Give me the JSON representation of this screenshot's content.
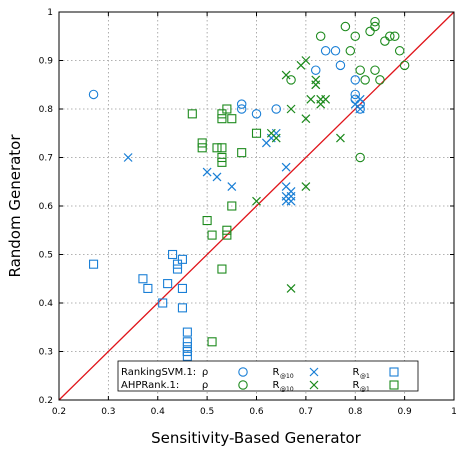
{
  "chart_data": {
    "type": "scatter",
    "xlabel": "Sensitivity-Based Generator",
    "ylabel": "Random Generator",
    "xlim": [
      0.2,
      1.0
    ],
    "ylim": [
      0.2,
      1.0
    ],
    "xticks": [
      "0.2",
      "0.3",
      "0.4",
      "0.5",
      "0.6",
      "0.7",
      "0.8",
      "0.9",
      "1"
    ],
    "yticks": [
      "0.2",
      "0.3",
      "0.4",
      "0.5",
      "0.6",
      "0.7",
      "0.8",
      "0.9",
      "1"
    ],
    "grid": true,
    "diagonal": true,
    "legend_position": "bottom",
    "legend": {
      "rows": [
        {
          "name": "RankingSVM.1:",
          "color": "#1a7fd6",
          "entries": [
            {
              "label": "ρ",
              "sub": "",
              "marker": "circle"
            },
            {
              "label": "R",
              "sub": "@10",
              "marker": "x"
            },
            {
              "label": "R",
              "sub": "@1",
              "marker": "square"
            }
          ]
        },
        {
          "name": "AHPRank.1:",
          "color": "#1d8a1d",
          "entries": [
            {
              "label": "ρ",
              "sub": "",
              "marker": "circle"
            },
            {
              "label": "R",
              "sub": "@10",
              "marker": "x"
            },
            {
              "label": "R",
              "sub": "@1",
              "marker": "square"
            }
          ]
        }
      ]
    },
    "series": [
      {
        "group": "RankingSVM.1",
        "metric": "ρ",
        "marker": "circle",
        "color": "#1a7fd6",
        "points": [
          [
            0.27,
            0.83
          ],
          [
            0.57,
            0.81
          ],
          [
            0.57,
            0.8
          ],
          [
            0.6,
            0.79
          ],
          [
            0.72,
            0.88
          ],
          [
            0.74,
            0.92
          ],
          [
            0.76,
            0.92
          ],
          [
            0.77,
            0.89
          ],
          [
            0.8,
            0.86
          ],
          [
            0.8,
            0.83
          ],
          [
            0.8,
            0.82
          ],
          [
            0.81,
            0.81
          ],
          [
            0.81,
            0.8
          ],
          [
            0.64,
            0.8
          ]
        ]
      },
      {
        "group": "RankingSVM.1",
        "metric": "R@10",
        "marker": "x",
        "color": "#1a7fd6",
        "points": [
          [
            0.34,
            0.7
          ],
          [
            0.5,
            0.67
          ],
          [
            0.52,
            0.66
          ],
          [
            0.55,
            0.64
          ],
          [
            0.62,
            0.73
          ],
          [
            0.63,
            0.74
          ],
          [
            0.64,
            0.75
          ],
          [
            0.66,
            0.68
          ],
          [
            0.66,
            0.64
          ],
          [
            0.67,
            0.63
          ],
          [
            0.66,
            0.62
          ],
          [
            0.67,
            0.61
          ],
          [
            0.66,
            0.61
          ],
          [
            0.67,
            0.62
          ],
          [
            0.81,
            0.8
          ],
          [
            0.8,
            0.81
          ],
          [
            0.81,
            0.82
          ]
        ]
      },
      {
        "group": "RankingSVM.1",
        "metric": "R@1",
        "marker": "square",
        "color": "#1a7fd6",
        "points": [
          [
            0.27,
            0.48
          ],
          [
            0.37,
            0.45
          ],
          [
            0.38,
            0.43
          ],
          [
            0.41,
            0.4
          ],
          [
            0.42,
            0.44
          ],
          [
            0.43,
            0.5
          ],
          [
            0.44,
            0.48
          ],
          [
            0.45,
            0.49
          ],
          [
            0.45,
            0.43
          ],
          [
            0.45,
            0.39
          ],
          [
            0.46,
            0.34
          ],
          [
            0.46,
            0.32
          ],
          [
            0.46,
            0.31
          ],
          [
            0.46,
            0.3
          ],
          [
            0.46,
            0.3
          ],
          [
            0.46,
            0.29
          ],
          [
            0.44,
            0.47
          ]
        ]
      },
      {
        "group": "AHPRank.1",
        "metric": "ρ",
        "marker": "circle",
        "color": "#1d8a1d",
        "points": [
          [
            0.67,
            0.86
          ],
          [
            0.73,
            0.95
          ],
          [
            0.78,
            0.97
          ],
          [
            0.79,
            0.92
          ],
          [
            0.8,
            0.95
          ],
          [
            0.81,
            0.7
          ],
          [
            0.82,
            0.86
          ],
          [
            0.83,
            0.96
          ],
          [
            0.84,
            0.97
          ],
          [
            0.84,
            0.98
          ],
          [
            0.84,
            0.88
          ],
          [
            0.85,
            0.86
          ],
          [
            0.86,
            0.94
          ],
          [
            0.87,
            0.95
          ],
          [
            0.88,
            0.95
          ],
          [
            0.89,
            0.92
          ],
          [
            0.9,
            0.89
          ],
          [
            0.81,
            0.88
          ]
        ]
      },
      {
        "group": "AHPRank.1",
        "metric": "R@10",
        "marker": "x",
        "color": "#1d8a1d",
        "points": [
          [
            0.6,
            0.61
          ],
          [
            0.63,
            0.75
          ],
          [
            0.64,
            0.74
          ],
          [
            0.66,
            0.87
          ],
          [
            0.67,
            0.8
          ],
          [
            0.67,
            0.43
          ],
          [
            0.69,
            0.89
          ],
          [
            0.7,
            0.9
          ],
          [
            0.7,
            0.78
          ],
          [
            0.7,
            0.64
          ],
          [
            0.71,
            0.82
          ],
          [
            0.72,
            0.86
          ],
          [
            0.72,
            0.85
          ],
          [
            0.72,
            0.85
          ],
          [
            0.73,
            0.82
          ],
          [
            0.73,
            0.81
          ],
          [
            0.74,
            0.82
          ],
          [
            0.77,
            0.74
          ]
        ]
      },
      {
        "group": "AHPRank.1",
        "metric": "R@1",
        "marker": "square",
        "color": "#1d8a1d",
        "points": [
          [
            0.47,
            0.79
          ],
          [
            0.49,
            0.73
          ],
          [
            0.49,
            0.72
          ],
          [
            0.5,
            0.57
          ],
          [
            0.51,
            0.32
          ],
          [
            0.51,
            0.54
          ],
          [
            0.52,
            0.72
          ],
          [
            0.53,
            0.79
          ],
          [
            0.53,
            0.78
          ],
          [
            0.53,
            0.72
          ],
          [
            0.53,
            0.7
          ],
          [
            0.53,
            0.47
          ],
          [
            0.54,
            0.8
          ],
          [
            0.54,
            0.55
          ],
          [
            0.54,
            0.54
          ],
          [
            0.55,
            0.78
          ],
          [
            0.55,
            0.6
          ],
          [
            0.57,
            0.71
          ],
          [
            0.6,
            0.75
          ],
          [
            0.53,
            0.69
          ]
        ]
      }
    ]
  }
}
